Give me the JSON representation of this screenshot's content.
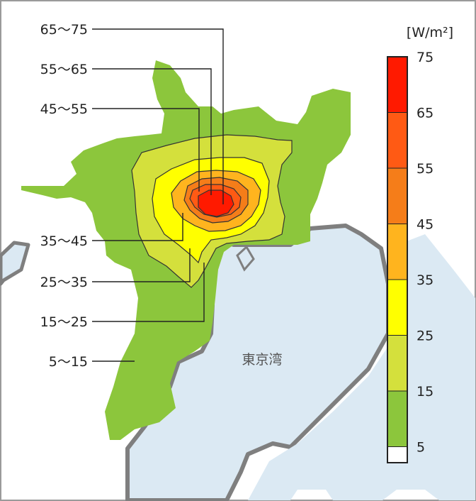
{
  "unit_label": "[W/m²]",
  "bay_label": "東京湾",
  "contour_labels": [
    "65～75",
    "55～65",
    "45～55",
    "35～45",
    "25～35",
    "15～25",
    "5～15"
  ],
  "legend": {
    "ticks": [
      "75",
      "65",
      "55",
      "45",
      "35",
      "25",
      "15",
      "5"
    ],
    "bands": [
      {
        "range": "65-75",
        "color": "#ff1a00"
      },
      {
        "range": "55-65",
        "color": "#ff5a14"
      },
      {
        "range": "45-55",
        "color": "#f57d19"
      },
      {
        "range": "35-45",
        "color": "#ffb41e"
      },
      {
        "range": "25-35",
        "color": "#ffff00"
      },
      {
        "range": "15-25",
        "color": "#d4e03c"
      },
      {
        "range": "5-15",
        "color": "#8cc63c"
      },
      {
        "range": "0-5",
        "color": "#ffffff"
      }
    ]
  },
  "colors": {
    "water": "#dbe9f3",
    "coast": "#7f7f7f"
  }
}
